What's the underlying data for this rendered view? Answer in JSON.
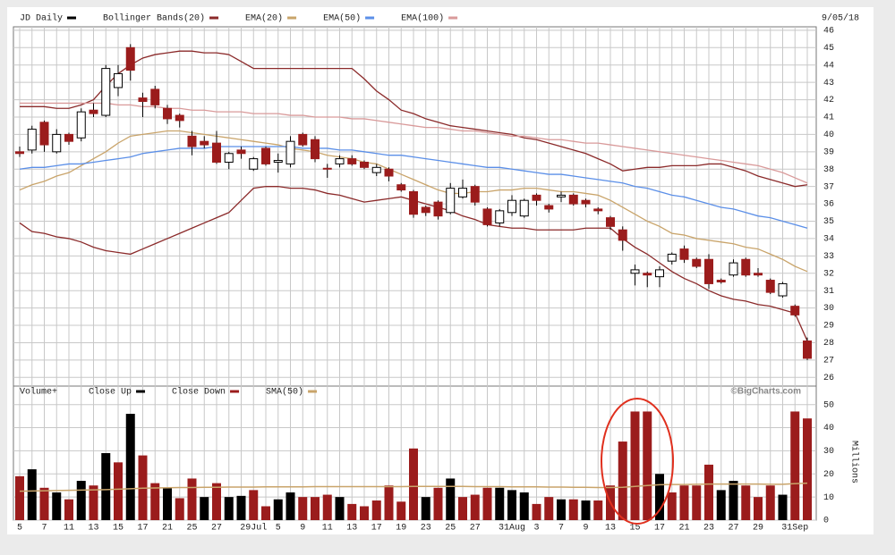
{
  "chart_data": [
    {
      "type": "candlestick",
      "title": "JD Daily",
      "subtitle": "9/05/18",
      "color": "#000000",
      "up_color": "#ffffff",
      "down_color": "#9b1c1c",
      "ylim": [
        25.5,
        46.2
      ],
      "yticks": [
        26,
        27,
        28,
        29,
        30,
        31,
        32,
        33,
        34,
        35,
        36,
        37,
        38,
        39,
        40,
        41,
        42,
        43,
        44,
        45,
        46
      ],
      "grid": true,
      "open": [
        39.0,
        39.1,
        40.7,
        39.0,
        40.0,
        39.8,
        41.4,
        41.1,
        42.7,
        45.0,
        42.1,
        42.6,
        41.5,
        41.1,
        39.9,
        39.6,
        39.5,
        38.4,
        39.1,
        38.0,
        39.2,
        38.4,
        38.3,
        40.0,
        39.7,
        38.05,
        38.3,
        38.6,
        38.4,
        37.8,
        38.0,
        37.1,
        36.7,
        35.8,
        36.1,
        35.5,
        36.4,
        37.0,
        35.7,
        34.9,
        35.5,
        35.3,
        36.5,
        35.9,
        36.4,
        36.5,
        36.2,
        35.7,
        35.2,
        34.5,
        32.0,
        32.0,
        31.8,
        32.7,
        33.4,
        32.8,
        32.8,
        31.6,
        31.9,
        32.8,
        32.0,
        31.6,
        30.7,
        30.1,
        28.1
      ],
      "high": [
        39.3,
        40.5,
        40.8,
        40.3,
        40.1,
        41.5,
        41.8,
        44.0,
        44.0,
        45.2,
        42.4,
        42.8,
        41.7,
        41.2,
        40.2,
        39.9,
        40.2,
        39.0,
        39.3,
        38.7,
        39.3,
        38.9,
        39.9,
        40.1,
        39.9,
        38.3,
        38.8,
        38.8,
        38.5,
        38.3,
        38.1,
        37.2,
        36.8,
        35.9,
        36.2,
        37.2,
        37.4,
        37.1,
        35.8,
        35.7,
        36.5,
        36.3,
        36.6,
        36.0,
        36.7,
        36.6,
        36.3,
        35.8,
        35.3,
        34.7,
        32.5,
        32.1,
        32.4,
        33.2,
        33.6,
        32.9,
        33.1,
        31.7,
        32.8,
        32.9,
        32.3,
        31.7,
        31.5,
        30.2,
        28.3
      ],
      "low": [
        38.7,
        38.9,
        39.0,
        38.9,
        39.4,
        39.6,
        41.0,
        41.0,
        42.2,
        43.1,
        41.0,
        41.5,
        40.6,
        40.4,
        38.8,
        39.2,
        38.3,
        38.0,
        38.6,
        37.9,
        38.2,
        37.8,
        38.1,
        39.3,
        38.4,
        37.5,
        38.1,
        38.2,
        38.0,
        37.6,
        37.3,
        36.7,
        35.2,
        35.3,
        35.1,
        35.4,
        36.3,
        35.9,
        34.7,
        34.7,
        35.3,
        35.2,
        35.9,
        35.5,
        36.1,
        35.9,
        35.8,
        35.4,
        34.5,
        33.3,
        31.3,
        31.2,
        31.2,
        32.5,
        32.6,
        32.3,
        31.1,
        31.4,
        31.8,
        31.8,
        31.8,
        30.8,
        30.6,
        29.5,
        27.0
      ],
      "close": [
        38.9,
        40.3,
        39.4,
        40.0,
        39.6,
        41.3,
        41.2,
        43.8,
        43.5,
        43.7,
        41.9,
        41.7,
        40.9,
        40.8,
        39.3,
        39.4,
        38.4,
        38.9,
        38.9,
        38.6,
        38.3,
        38.5,
        39.6,
        39.4,
        38.6,
        38.0,
        38.6,
        38.3,
        38.1,
        38.1,
        37.6,
        36.8,
        35.4,
        35.5,
        35.3,
        36.9,
        36.9,
        36.1,
        34.8,
        35.6,
        36.2,
        36.2,
        36.2,
        35.7,
        36.5,
        36.0,
        36.0,
        35.6,
        34.7,
        33.9,
        32.2,
        31.9,
        32.2,
        33.1,
        32.8,
        32.4,
        31.4,
        31.5,
        32.6,
        31.9,
        31.9,
        30.9,
        31.4,
        29.6,
        27.1
      ],
      "series": [
        {
          "name": "Bollinger Bands(20)",
          "color": "#8b2a2a",
          "upper": [
            41.6,
            41.6,
            41.6,
            41.5,
            41.5,
            41.7,
            42.0,
            42.8,
            43.5,
            44.0,
            44.4,
            44.6,
            44.7,
            44.8,
            44.8,
            44.7,
            44.7,
            44.6,
            44.2,
            43.8,
            43.8,
            43.8,
            43.8,
            43.8,
            43.8,
            43.8,
            43.8,
            43.8,
            43.2,
            42.5,
            42.0,
            41.4,
            41.2,
            40.9,
            40.7,
            40.5,
            40.4,
            40.3,
            40.2,
            40.1,
            40.0,
            39.8,
            39.7,
            39.5,
            39.3,
            39.1,
            38.9,
            38.6,
            38.3,
            37.9,
            38.0,
            38.1,
            38.1,
            38.2,
            38.2,
            38.2,
            38.3,
            38.3,
            38.1,
            37.9,
            37.6,
            37.4,
            37.2,
            37.0,
            37.1
          ],
          "lower": [
            34.9,
            34.4,
            34.3,
            34.1,
            34.0,
            33.8,
            33.5,
            33.3,
            33.2,
            33.1,
            33.4,
            33.7,
            34.0,
            34.3,
            34.6,
            34.9,
            35.2,
            35.5,
            36.2,
            36.9,
            37.0,
            37.0,
            36.9,
            36.9,
            36.8,
            36.6,
            36.5,
            36.3,
            36.1,
            36.2,
            36.3,
            36.4,
            36.2,
            36.0,
            35.8,
            35.6,
            35.3,
            35.1,
            34.8,
            34.7,
            34.6,
            34.6,
            34.5,
            34.5,
            34.5,
            34.5,
            34.6,
            34.6,
            34.6,
            34.0,
            33.5,
            33.1,
            32.6,
            32.1,
            31.7,
            31.4,
            31.0,
            30.7,
            30.5,
            30.4,
            30.2,
            30.1,
            29.9,
            29.7,
            28.1
          ]
        },
        {
          "name": "EMA(20)",
          "color": "#c9a46a",
          "values": [
            36.8,
            37.1,
            37.3,
            37.6,
            37.8,
            38.2,
            38.6,
            39.0,
            39.5,
            39.9,
            40.0,
            40.1,
            40.2,
            40.2,
            40.1,
            40.0,
            39.9,
            39.8,
            39.7,
            39.6,
            39.5,
            39.4,
            39.2,
            39.1,
            39.0,
            38.8,
            38.7,
            38.6,
            38.4,
            38.3,
            38.0,
            37.7,
            37.4,
            37.1,
            36.8,
            36.6,
            36.6,
            36.7,
            36.7,
            36.8,
            36.8,
            36.9,
            36.9,
            36.8,
            36.7,
            36.7,
            36.6,
            36.5,
            36.2,
            35.8,
            35.4,
            35.0,
            34.7,
            34.3,
            34.2,
            34.0,
            33.9,
            33.8,
            33.7,
            33.5,
            33.4,
            33.1,
            32.8,
            32.4,
            32.1
          ]
        },
        {
          "name": "EMA(50)",
          "color": "#5b8fe8",
          "values": [
            38.0,
            38.1,
            38.1,
            38.2,
            38.3,
            38.3,
            38.4,
            38.5,
            38.6,
            38.7,
            38.9,
            39.0,
            39.1,
            39.2,
            39.2,
            39.2,
            39.3,
            39.3,
            39.3,
            39.3,
            39.3,
            39.3,
            39.3,
            39.2,
            39.2,
            39.2,
            39.1,
            39.1,
            39.0,
            38.9,
            38.8,
            38.8,
            38.7,
            38.6,
            38.5,
            38.4,
            38.3,
            38.2,
            38.1,
            38.1,
            38.0,
            37.9,
            37.8,
            37.7,
            37.7,
            37.6,
            37.5,
            37.4,
            37.3,
            37.2,
            37.0,
            36.9,
            36.7,
            36.5,
            36.4,
            36.2,
            36.0,
            35.8,
            35.7,
            35.5,
            35.3,
            35.2,
            35.0,
            34.8,
            34.6
          ]
        },
        {
          "name": "EMA(100)",
          "color": "#d99a9a",
          "values": [
            41.8,
            41.8,
            41.8,
            41.8,
            41.8,
            41.8,
            41.8,
            41.8,
            41.7,
            41.7,
            41.6,
            41.6,
            41.5,
            41.5,
            41.4,
            41.4,
            41.3,
            41.3,
            41.3,
            41.2,
            41.2,
            41.2,
            41.1,
            41.1,
            41.0,
            41.0,
            41.0,
            40.9,
            40.9,
            40.8,
            40.7,
            40.6,
            40.5,
            40.4,
            40.4,
            40.3,
            40.2,
            40.2,
            40.1,
            40.0,
            39.9,
            39.9,
            39.8,
            39.7,
            39.7,
            39.6,
            39.5,
            39.5,
            39.4,
            39.3,
            39.2,
            39.1,
            39.0,
            38.9,
            38.8,
            38.7,
            38.6,
            38.5,
            38.4,
            38.3,
            38.2,
            38.0,
            37.8,
            37.5,
            37.2
          ]
        }
      ]
    },
    {
      "type": "bar",
      "title": "Volume+",
      "ylabel": "Millions",
      "annotation": "©BigCharts.com",
      "ylim": [
        0,
        58
      ],
      "yticks": [
        0,
        10,
        20,
        30,
        40,
        50
      ],
      "grid": true,
      "categories": [
        "5",
        null,
        "7",
        null,
        "11",
        null,
        "13",
        null,
        "15",
        null,
        "17",
        null,
        "21",
        null,
        "25",
        null,
        "27",
        null,
        null,
        "29Jul",
        null,
        "5",
        null,
        "9",
        null,
        "11",
        null,
        "13",
        null,
        "17",
        null,
        "19",
        null,
        "23",
        null,
        "25",
        null,
        "27",
        null,
        null,
        "31Aug",
        null,
        "3",
        null,
        "7",
        null,
        "9",
        null,
        "13",
        null,
        "15",
        null,
        "17",
        null,
        "21",
        null,
        "23",
        null,
        "27",
        null,
        "29",
        null,
        null,
        "31Sep",
        null
      ],
      "series": [
        {
          "name": "Close Up",
          "color": "#000000",
          "values": [
            null,
            22,
            null,
            12,
            null,
            17,
            null,
            29,
            null,
            46,
            null,
            null,
            14,
            null,
            null,
            10,
            null,
            10,
            10.5,
            null,
            null,
            9,
            12,
            null,
            null,
            null,
            10,
            null,
            null,
            null,
            null,
            null,
            null,
            10,
            null,
            18,
            null,
            null,
            null,
            14,
            13,
            12,
            null,
            null,
            9,
            null,
            8.5,
            null,
            null,
            null,
            null,
            null,
            20,
            null,
            null,
            null,
            null,
            13,
            17,
            null,
            null,
            null,
            11,
            null,
            null
          ]
        },
        {
          "name": "Close Down",
          "color": "#9b1c1c",
          "values": [
            19,
            null,
            14,
            null,
            9,
            null,
            15,
            null,
            25,
            null,
            28,
            16,
            null,
            9.5,
            18,
            null,
            16,
            null,
            null,
            13,
            6,
            null,
            null,
            10,
            10,
            11,
            null,
            7,
            6,
            8.5,
            15,
            8,
            31,
            null,
            14,
            null,
            10,
            11,
            14,
            null,
            null,
            null,
            7,
            10,
            null,
            9,
            null,
            8.5,
            15,
            34,
            47,
            47,
            null,
            12,
            15,
            15,
            24,
            null,
            null,
            15,
            10,
            15,
            null,
            47,
            44
          ]
        },
        {
          "name": "SMA(50)",
          "color": "#c9a46a",
          "type": "line",
          "values": [
            12.5,
            12.6,
            12.7,
            12.8,
            12.9,
            13.0,
            13.1,
            13.2,
            13.4,
            13.6,
            13.8,
            13.9,
            14.0,
            14.1,
            14.1,
            14.2,
            14.2,
            14.3,
            14.3,
            14.3,
            14.4,
            14.4,
            14.4,
            14.4,
            14.5,
            14.5,
            14.5,
            14.5,
            14.5,
            14.5,
            14.5,
            14.5,
            14.6,
            14.6,
            14.6,
            14.6,
            14.6,
            14.5,
            14.5,
            14.5,
            14.4,
            14.4,
            14.4,
            14.3,
            14.3,
            14.2,
            14.2,
            14.1,
            14.1,
            14.2,
            14.6,
            15.0,
            15.3,
            15.4,
            15.4,
            15.5,
            15.6,
            15.6,
            15.6,
            15.6,
            15.6,
            15.5,
            15.5,
            15.8,
            16.0
          ]
        }
      ]
    }
  ]
}
